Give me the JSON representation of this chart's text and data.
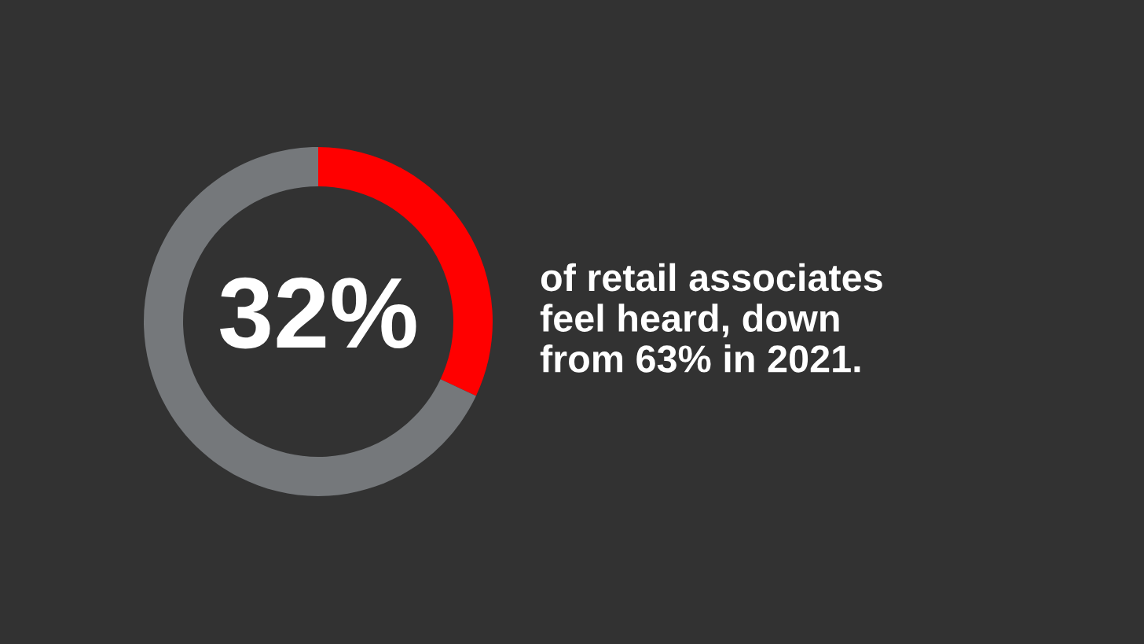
{
  "chart_data": {
    "type": "donut",
    "categories": [
      null,
      null
    ],
    "values": [
      32,
      68
    ],
    "colors": [
      "#ff0000",
      "#75787b"
    ],
    "value_labels": [
      "32%",
      null
    ],
    "annotations": [
      "of retail associates\nfeel heard, down\nfrom 63% in 2021."
    ]
  }
}
